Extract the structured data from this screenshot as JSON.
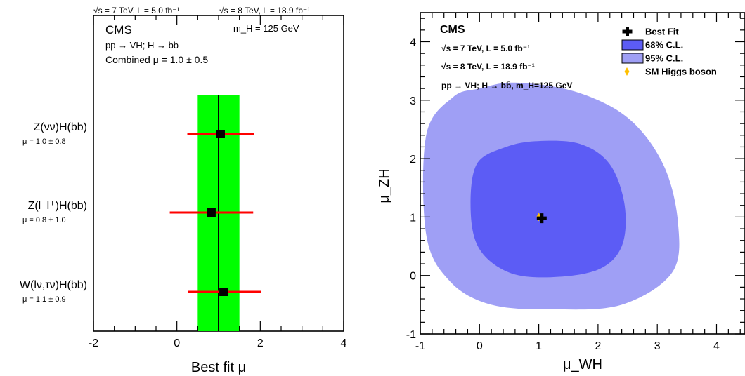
{
  "chart_data": [
    {
      "type": "scatter",
      "subtype": "mu-summary",
      "header_left": "√s = 7 TeV, L = 5.0 fb⁻¹",
      "header_right": "√s = 8 TeV, L = 18.9 fb⁻¹",
      "experiment": "CMS",
      "mass_label": "m_H = 125 GeV",
      "process": "pp → VH; H → bb̄",
      "combined_label": "Combined μ = 1.0 ± 0.5",
      "xlabel": "Best fit μ",
      "xlim": [
        -2,
        4
      ],
      "xticks": [
        "-2",
        "0",
        "2",
        "4"
      ],
      "combined": {
        "value": 1.0,
        "err_low": 0.5,
        "err_high": 0.5,
        "band_color": "#00ff00",
        "line_color": "#000000"
      },
      "channels": [
        {
          "name": "Z(νν)H(bb)",
          "mu_label": "μ = 1.0 ± 0.8",
          "value": 1.05,
          "err_low": 0.8,
          "err_high": 0.8
        },
        {
          "name": "Z(l⁻l⁺)H(bb)",
          "mu_label": "μ = 0.8 ± 1.0",
          "value": 0.83,
          "err_low": 1.0,
          "err_high": 1.0
        },
        {
          "name": "W(lν,τν)H(bb)",
          "mu_label": "μ = 1.1 ± 0.9",
          "value": 1.12,
          "err_low": 0.85,
          "err_high": 0.9
        }
      ],
      "err_color": "#ff0000",
      "marker_color": "#000000"
    },
    {
      "type": "scatter",
      "subtype": "2d-likelihood-contour",
      "experiment": "CMS",
      "energy_7": "√s = 7 TeV, L = 5.0 fb⁻¹",
      "energy_8": "√s = 8 TeV, L = 18.9 fb⁻¹",
      "process": "pp → VH; H → bb̄, m_H=125 GeV",
      "xlabel": "μ_WH",
      "ylabel": "μ_ZH",
      "xlim": [
        -1,
        4.5
      ],
      "ylim": [
        -1,
        4.5
      ],
      "xticks": [
        "-1",
        "0",
        "1",
        "2",
        "3",
        "4"
      ],
      "yticks": [
        "-1",
        "0",
        "1",
        "2",
        "3",
        "4"
      ],
      "legend_placement": "top-right",
      "legend": [
        {
          "label": "Best Fit",
          "symbol": "cross",
          "color": "#000000"
        },
        {
          "label": "68% C.L.",
          "symbol": "box",
          "color": "#5c5cf5"
        },
        {
          "label": "95% C.L.",
          "symbol": "box",
          "color": "#9f9ff5"
        },
        {
          "label": "SM Higgs boson",
          "symbol": "diamond",
          "color": "#ffc000"
        }
      ],
      "best_fit": {
        "x": 1.05,
        "y": 0.98
      },
      "sm_point": {
        "x": 1.0,
        "y": 1.0
      },
      "contour_95": [
        [
          -0.45,
          3.05
        ],
        [
          -0.9,
          2.4
        ],
        [
          -0.9,
          0.7
        ],
        [
          -0.5,
          -0.1
        ],
        [
          0.2,
          -0.5
        ],
        [
          1.25,
          -0.58
        ],
        [
          2.4,
          -0.5
        ],
        [
          3.25,
          0.05
        ],
        [
          3.35,
          0.9
        ],
        [
          3.1,
          1.9
        ],
        [
          2.5,
          2.7
        ],
        [
          1.6,
          3.15
        ],
        [
          0.6,
          3.3
        ],
        [
          0.0,
          3.2
        ]
      ],
      "contour_68": [
        [
          -0.05,
          1.9
        ],
        [
          -0.15,
          1.1
        ],
        [
          0.0,
          0.45
        ],
        [
          0.5,
          0.05
        ],
        [
          1.2,
          -0.03
        ],
        [
          2.0,
          0.1
        ],
        [
          2.4,
          0.5
        ],
        [
          2.45,
          1.2
        ],
        [
          2.2,
          1.9
        ],
        [
          1.7,
          2.25
        ],
        [
          1.0,
          2.3
        ],
        [
          0.45,
          2.2
        ]
      ]
    }
  ]
}
